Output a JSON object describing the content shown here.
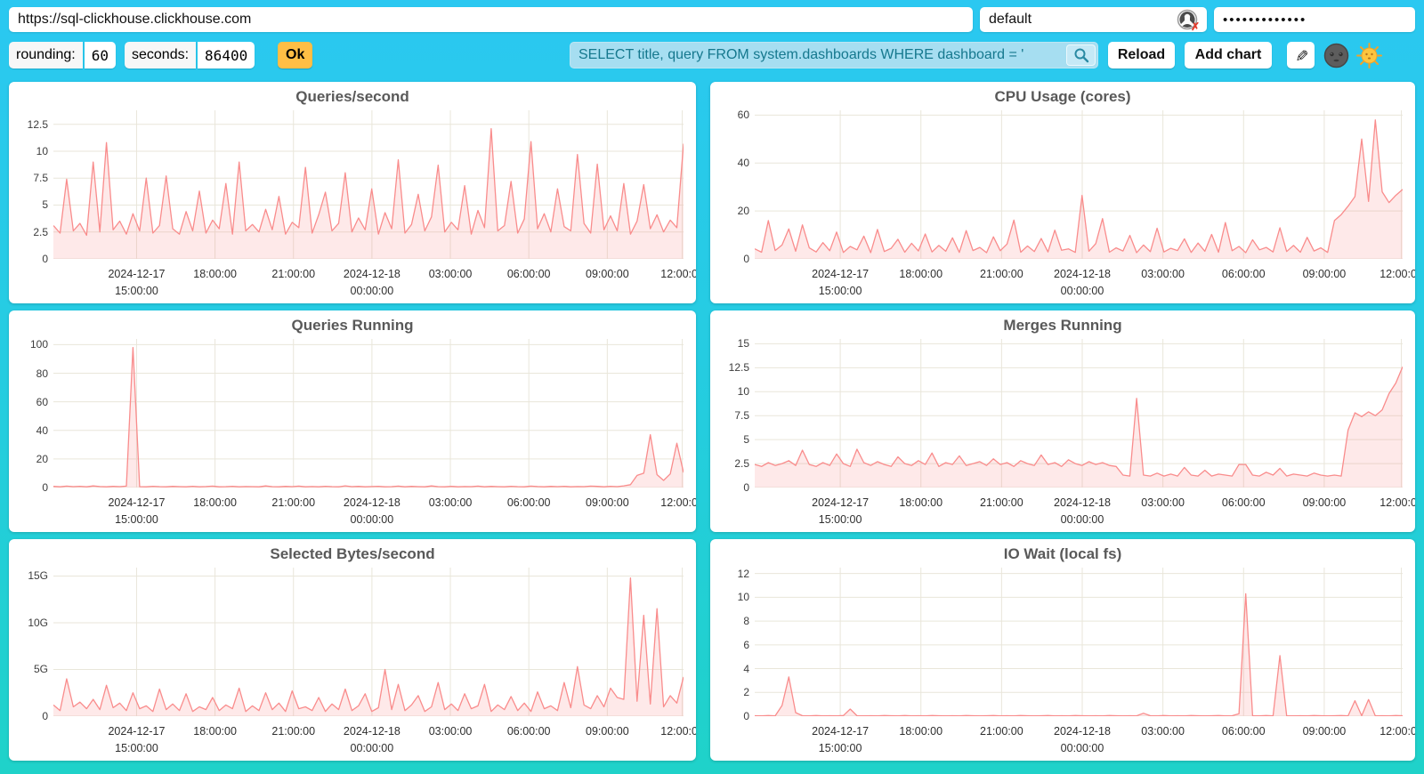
{
  "address_bar": {
    "url": "https://sql-clickhouse.clickhouse.com",
    "user": "default",
    "password_masked": "•••••••••••••"
  },
  "toolbar": {
    "rounding_label": "rounding:",
    "rounding_value": "60",
    "seconds_label": "seconds:",
    "seconds_value": "86400",
    "ok_label": "Ok",
    "query_value": "SELECT title, query FROM system.dashboards WHERE dashboard = '",
    "reload_label": "Reload",
    "add_chart_label": "Add chart",
    "edit_glyph": "✎",
    "icons": [
      "search-icon",
      "edit-pencil-icon",
      "dark-theme-moon-icon",
      "light-theme-sun-icon",
      "user-avatar-icon"
    ]
  },
  "colors": {
    "background_top": "#2bc8f1",
    "background_bottom": "#1fd2c9",
    "line": "#f98c8c",
    "fill": "rgba(248,120,120,0.16)",
    "grid": "#e9e6da",
    "query_bg": "#a6def1",
    "query_text": "#15788e",
    "ok_bg": "#ffbe45"
  },
  "x_axis": {
    "ticks": [
      "2024-12-17\n15:00:00",
      "18:00:00",
      "21:00:00",
      "2024-12-18\n00:00:00",
      "03:00:00",
      "06:00:00",
      "09:00:00",
      "12:00:00"
    ],
    "fractions": [
      0.132,
      0.2565,
      0.381,
      0.5055,
      0.63,
      0.7545,
      0.879,
      0.998
    ]
  },
  "chart_data": [
    {
      "type": "area",
      "title": "Queries/second",
      "ylim": [
        0,
        13.8
      ],
      "ytick_values": [
        0,
        2.5,
        5,
        7.5,
        10,
        12.5
      ],
      "ytick_labels": [
        "0",
        "2.5",
        "5",
        "7.5",
        "10",
        "12.5"
      ],
      "values": [
        3.1,
        2.4,
        7.4,
        2.6,
        3.3,
        2.2,
        9.0,
        2.5,
        10.8,
        2.7,
        3.5,
        2.3,
        4.2,
        2.6,
        7.5,
        2.4,
        3.1,
        7.7,
        2.8,
        2.3,
        4.4,
        2.6,
        6.3,
        2.4,
        3.6,
        2.8,
        7.0,
        2.3,
        9.0,
        2.6,
        3.2,
        2.5,
        4.6,
        2.7,
        5.8,
        2.3,
        3.4,
        2.9,
        8.5,
        2.4,
        4.1,
        6.2,
        2.6,
        3.3,
        8.0,
        2.5,
        3.8,
        2.7,
        6.5,
        2.3,
        4.3,
        2.8,
        9.2,
        2.4,
        3.2,
        6.0,
        2.6,
        3.9,
        8.7,
        2.5,
        3.4,
        2.7,
        6.8,
        2.3,
        4.5,
        2.9,
        12.1,
        2.6,
        3.1,
        7.2,
        2.4,
        3.7,
        10.9,
        2.8,
        4.2,
        2.5,
        6.5,
        3.0,
        2.6,
        9.7,
        3.3,
        2.4,
        8.8,
        2.7,
        4.0,
        2.6,
        7.0,
        2.3,
        3.5,
        6.9,
        2.8,
        4.1,
        2.5,
        3.6,
        2.9,
        10.7
      ]
    },
    {
      "type": "area",
      "title": "CPU Usage (cores)",
      "ylim": [
        0,
        62
      ],
      "ytick_values": [
        0,
        20,
        40,
        60
      ],
      "ytick_labels": [
        "0",
        "20",
        "40",
        "60"
      ],
      "values": [
        4.2,
        2.8,
        16.0,
        3.5,
        5.8,
        12.5,
        3.2,
        14.2,
        4.6,
        2.9,
        6.8,
        3.4,
        11.2,
        2.7,
        5.2,
        3.8,
        9.5,
        2.6,
        12.3,
        3.1,
        4.4,
        8.2,
        2.8,
        6.5,
        3.3,
        10.4,
        2.9,
        5.6,
        3.2,
        8.8,
        2.7,
        11.8,
        3.5,
        4.8,
        2.6,
        9.2,
        3.4,
        6.2,
        16.2,
        2.8,
        5.4,
        3.1,
        8.5,
        2.9,
        12.0,
        3.6,
        4.2,
        2.7,
        26.5,
        3.2,
        6.4,
        16.8,
        2.8,
        4.6,
        3.3,
        9.8,
        2.6,
        5.8,
        3.0,
        12.8,
        2.9,
        4.4,
        3.5,
        8.4,
        2.7,
        6.6,
        3.2,
        10.2,
        2.8,
        15.2,
        3.4,
        5.2,
        2.6,
        8.0,
        3.8,
        4.8,
        2.9,
        13.0,
        3.1,
        5.6,
        2.8,
        9.0,
        3.3,
        4.6,
        2.7,
        16.0,
        18.5,
        22.0,
        26.0,
        50.0,
        24.0,
        58.0,
        28.0,
        23.5,
        26.5,
        29.0
      ]
    },
    {
      "type": "area",
      "title": "Queries Running",
      "ylim": [
        0,
        104
      ],
      "ytick_values": [
        0,
        20,
        40,
        60,
        80,
        100
      ],
      "ytick_labels": [
        "0",
        "20",
        "40",
        "60",
        "80",
        "100"
      ],
      "values": [
        0.8,
        0.5,
        1.0,
        0.6,
        0.9,
        0.5,
        1.1,
        0.7,
        0.5,
        0.8,
        0.6,
        1.0,
        98.0,
        0.6,
        0.5,
        0.9,
        0.6,
        0.5,
        0.8,
        0.6,
        0.5,
        0.9,
        0.5,
        0.7,
        1.0,
        0.5,
        0.6,
        0.9,
        0.5,
        0.7,
        0.6,
        0.5,
        1.1,
        0.6,
        0.5,
        0.8,
        0.6,
        1.0,
        0.5,
        0.7,
        0.5,
        0.9,
        0.6,
        0.5,
        1.2,
        0.6,
        0.8,
        0.5,
        0.7,
        0.9,
        0.5,
        0.6,
        1.0,
        0.5,
        0.8,
        0.6,
        0.5,
        1.1,
        0.6,
        0.5,
        0.9,
        0.5,
        0.7,
        0.6,
        1.0,
        0.5,
        0.8,
        0.6,
        0.5,
        0.9,
        0.6,
        0.5,
        1.0,
        0.7,
        0.5,
        0.8,
        0.6,
        0.9,
        0.5,
        0.7,
        0.6,
        1.0,
        0.8,
        0.5,
        0.9,
        0.6,
        1.2,
        2.0,
        8.5,
        10.0,
        37.0,
        9.0,
        5.0,
        9.5,
        31.0,
        10.5
      ]
    },
    {
      "type": "area",
      "title": "Merges Running",
      "ylim": [
        0,
        15.5
      ],
      "ytick_values": [
        0,
        2.5,
        5,
        7.5,
        10,
        12.5,
        15
      ],
      "ytick_labels": [
        "0",
        "2.5",
        "5",
        "7.5",
        "10",
        "12.5",
        "15"
      ],
      "values": [
        2.4,
        2.2,
        2.6,
        2.3,
        2.5,
        2.8,
        2.3,
        3.9,
        2.4,
        2.2,
        2.6,
        2.3,
        3.5,
        2.5,
        2.2,
        4.0,
        2.6,
        2.3,
        2.7,
        2.4,
        2.2,
        3.2,
        2.5,
        2.3,
        2.8,
        2.4,
        3.6,
        2.2,
        2.6,
        2.4,
        3.3,
        2.3,
        2.5,
        2.7,
        2.3,
        3.0,
        2.4,
        2.6,
        2.2,
        2.8,
        2.5,
        2.3,
        3.4,
        2.4,
        2.6,
        2.2,
        2.9,
        2.5,
        2.3,
        2.7,
        2.4,
        2.6,
        2.3,
        2.2,
        1.3,
        1.2,
        9.3,
        1.3,
        1.2,
        1.5,
        1.2,
        1.4,
        1.2,
        2.1,
        1.3,
        1.2,
        1.8,
        1.2,
        1.4,
        1.3,
        1.2,
        2.4,
        2.4,
        1.3,
        1.2,
        1.6,
        1.3,
        2.0,
        1.2,
        1.4,
        1.3,
        1.2,
        1.5,
        1.3,
        1.2,
        1.3,
        1.2,
        6.0,
        7.8,
        7.4,
        7.9,
        7.5,
        8.1,
        9.8,
        10.9,
        12.6
      ]
    },
    {
      "type": "area",
      "title": "Selected Bytes/second",
      "ylim": [
        0,
        15.9
      ],
      "ytick_values": [
        0,
        5,
        10,
        15
      ],
      "ytick_labels": [
        "0",
        "5G",
        "10G",
        "15G"
      ],
      "values": [
        1.2,
        0.6,
        4.0,
        1.0,
        1.5,
        0.8,
        1.8,
        0.7,
        3.3,
        0.9,
        1.4,
        0.6,
        2.5,
        0.8,
        1.1,
        0.5,
        2.9,
        0.7,
        1.3,
        0.6,
        2.4,
        0.5,
        1.0,
        0.7,
        2.0,
        0.6,
        1.2,
        0.8,
        3.0,
        0.5,
        1.1,
        0.6,
        2.5,
        0.7,
        1.4,
        0.5,
        2.7,
        0.8,
        1.0,
        0.6,
        2.0,
        0.5,
        1.3,
        0.7,
        2.9,
        0.6,
        1.1,
        2.4,
        0.5,
        0.9,
        5.0,
        0.7,
        3.4,
        0.6,
        1.2,
        2.2,
        0.5,
        1.0,
        3.6,
        0.7,
        1.3,
        0.6,
        2.4,
        0.8,
        1.1,
        3.4,
        0.5,
        1.2,
        0.7,
        2.1,
        0.6,
        1.4,
        0.5,
        2.6,
        0.8,
        1.1,
        0.6,
        3.6,
        0.9,
        5.3,
        1.2,
        0.8,
        2.2,
        1.0,
        3.0,
        2.0,
        1.8,
        14.8,
        1.6,
        10.8,
        1.3,
        11.5,
        1.0,
        2.2,
        1.4,
        4.2
      ]
    },
    {
      "type": "area",
      "title": "IO Wait (local fs)",
      "ylim": [
        0,
        12.5
      ],
      "ytick_values": [
        0,
        2,
        4,
        6,
        8,
        10,
        12
      ],
      "ytick_labels": [
        "0",
        "2",
        "4",
        "6",
        "8",
        "10",
        "12"
      ],
      "values": [
        0.04,
        0.03,
        0.05,
        0.03,
        0.9,
        3.3,
        0.3,
        0.04,
        0.03,
        0.05,
        0.03,
        0.04,
        0.03,
        0.05,
        0.6,
        0.04,
        0.03,
        0.04,
        0.03,
        0.05,
        0.04,
        0.03,
        0.05,
        0.03,
        0.04,
        0.03,
        0.05,
        0.04,
        0.03,
        0.04,
        0.03,
        0.05,
        0.04,
        0.03,
        0.04,
        0.05,
        0.03,
        0.04,
        0.03,
        0.05,
        0.04,
        0.03,
        0.04,
        0.05,
        0.03,
        0.04,
        0.03,
        0.05,
        0.04,
        0.03,
        0.04,
        0.03,
        0.05,
        0.04,
        0.03,
        0.04,
        0.03,
        0.25,
        0.04,
        0.03,
        0.05,
        0.03,
        0.04,
        0.03,
        0.05,
        0.04,
        0.03,
        0.04,
        0.05,
        0.03,
        0.04,
        0.2,
        10.3,
        0.04,
        0.03,
        0.05,
        0.03,
        5.1,
        0.04,
        0.03,
        0.04,
        0.03,
        0.05,
        0.04,
        0.03,
        0.04,
        0.05,
        0.03,
        1.3,
        0.04,
        1.4,
        0.03,
        0.04,
        0.03,
        0.05,
        0.04
      ]
    }
  ]
}
